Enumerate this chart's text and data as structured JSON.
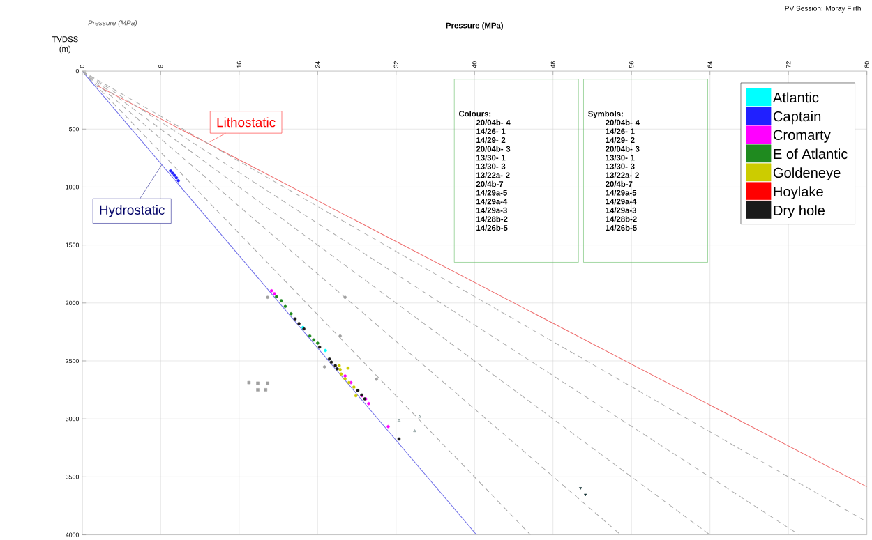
{
  "chart_data": {
    "type": "scatter",
    "xlabel": "Pressure (MPa)",
    "ylabel": "TVDSS (m)",
    "xlim": [
      0,
      80
    ],
    "xticks": [
      0,
      8,
      16,
      24,
      32,
      40,
      48,
      56,
      64,
      72,
      80
    ],
    "ylim": [
      4000,
      0
    ],
    "yticks": [
      0,
      500,
      1000,
      1500,
      2000,
      2500,
      3000,
      3500,
      4000
    ],
    "grid": true,
    "legend": "top right",
    "annotations": [
      "PV Session: Moray Firth",
      "Pressure (MPa)",
      "Colours:",
      "20/04b- 4",
      "14/26- 1",
      "14/29- 2",
      "20/04b- 3",
      "13/30- 1",
      "13/30- 3",
      "13/22a- 2",
      "20/4b-7",
      "14/29a-5",
      "14/29a-4",
      "14/29a-3",
      "14/28b-2",
      "14/26b-5",
      "Symbols:",
      "20/04b- 4",
      "14/26- 1",
      "14/29- 2",
      "20/04b- 3",
      "13/30- 1",
      "13/30- 3",
      "13/22a- 2",
      "20/4b-7",
      "14/29a-5",
      "14/29a-4",
      "14/29a-3",
      "14/28b-2",
      "14/26b-5",
      {
        "text": "Lithostatic",
        "x": 13,
        "y": 611
      },
      {
        "text": "Hydrostatic",
        "x": 8.1,
        "y": 809
      }
    ],
    "series": [
      {
        "type": "line",
        "color": "#6f6fe8",
        "line_style": "solid",
        "x": [
          0,
          40.2
        ],
        "values": [
          0,
          4000
        ]
      },
      {
        "type": "line",
        "color": "#ee6a6a",
        "line_style": "solid",
        "x": [
          1.5,
          80
        ],
        "values": [
          125,
          3586
        ]
      },
      {
        "type": "line",
        "color": "#a6a6a6",
        "line_style": "dashed",
        "x": [
          0,
          45.7
        ],
        "values": [
          0,
          4000
        ]
      },
      {
        "type": "line",
        "color": "#a8a8a8",
        "line_style": "dashed",
        "x": [
          0,
          54.9
        ],
        "values": [
          0,
          4000
        ]
      },
      {
        "type": "line",
        "color": "#aaaaaa",
        "line_style": "dashed",
        "x": [
          0,
          64
        ],
        "values": [
          0,
          4000
        ]
      },
      {
        "type": "line",
        "color": "#acacac",
        "line_style": "dashed",
        "x": [
          0,
          73.1
        ],
        "values": [
          0,
          4000
        ]
      },
      {
        "type": "line",
        "color": "#aeaeae",
        "line_style": "dashed",
        "x": [
          0,
          80
        ],
        "values": [
          0,
          3889
        ]
      },
      {
        "color": "#a0a0a0",
        "marker": "circle",
        "x": [
          18.9,
          26.8,
          26.3,
          24.7,
          30.0
        ],
        "values": [
          1951,
          1951,
          2285,
          2551,
          2658
        ]
      },
      {
        "color": "#a0a0a0",
        "marker": "square",
        "x": [
          17.0,
          17.9,
          18.9,
          17.9,
          18.7
        ],
        "values": [
          2687,
          2692,
          2692,
          2749,
          2749
        ]
      },
      {
        "name": "Atlantic",
        "color": "#00ffff",
        "marker": "circle",
        "x": [
          22.5,
          24.8
        ],
        "values": [
          2212,
          2410
        ]
      },
      {
        "name": "Captain",
        "color": "#2020ff",
        "marker": "circle",
        "x": [
          9.0,
          9.2,
          9.4,
          9.6,
          9.8
        ],
        "values": [
          860,
          880,
          900,
          920,
          945
        ]
      },
      {
        "name": "Cromarty",
        "color": "#ff00ff",
        "marker": "circle",
        "x": [
          19.3,
          19.6,
          26.8,
          27.4,
          28.5,
          28.9,
          29.2,
          31.2
        ],
        "values": [
          1895,
          1920,
          2630,
          2687,
          2800,
          2828,
          2868,
          3066
        ]
      },
      {
        "name": "E of Atlantic",
        "color": "#1f8a1f",
        "marker": "circle",
        "x": [
          19.8,
          20.3,
          20.7,
          21.3,
          23.2,
          23.6,
          24.0
        ],
        "values": [
          1946,
          1980,
          2030,
          2093,
          2285,
          2319,
          2347
        ]
      },
      {
        "name": "Goldeneye",
        "color": "#cccc00",
        "marker": "circle",
        "x": [
          26.2,
          26.3,
          26.4,
          26.8,
          27.1,
          27.2,
          27.7,
          27.9
        ],
        "values": [
          2540,
          2573,
          2613,
          2653,
          2562,
          2687,
          2726,
          2800
        ]
      },
      {
        "name": "Hoylake",
        "color": "#ff0000",
        "marker": "circle"
      },
      {
        "name": "Dry hole",
        "color": "#1a1a1a",
        "marker": "circle",
        "x": [
          21.7,
          22.1,
          22.6,
          24.2,
          25.2,
          25.4,
          25.8,
          26.0,
          28.1,
          28.5,
          28.8,
          32.3
        ],
        "values": [
          2138,
          2178,
          2223,
          2381,
          2483,
          2511,
          2540,
          2568,
          2755,
          2794,
          2828,
          3173
        ]
      },
      {
        "color": "#2f4f4f",
        "marker": "triangle-open",
        "x": [
          32.3,
          34.4,
          33.9
        ],
        "values": [
          3015,
          2981,
          3105
        ]
      },
      {
        "color": "#0d2b2e",
        "marker": "triangle-down",
        "x": [
          50.8,
          51.3
        ],
        "values": [
          3597,
          3654
        ]
      }
    ]
  }
}
